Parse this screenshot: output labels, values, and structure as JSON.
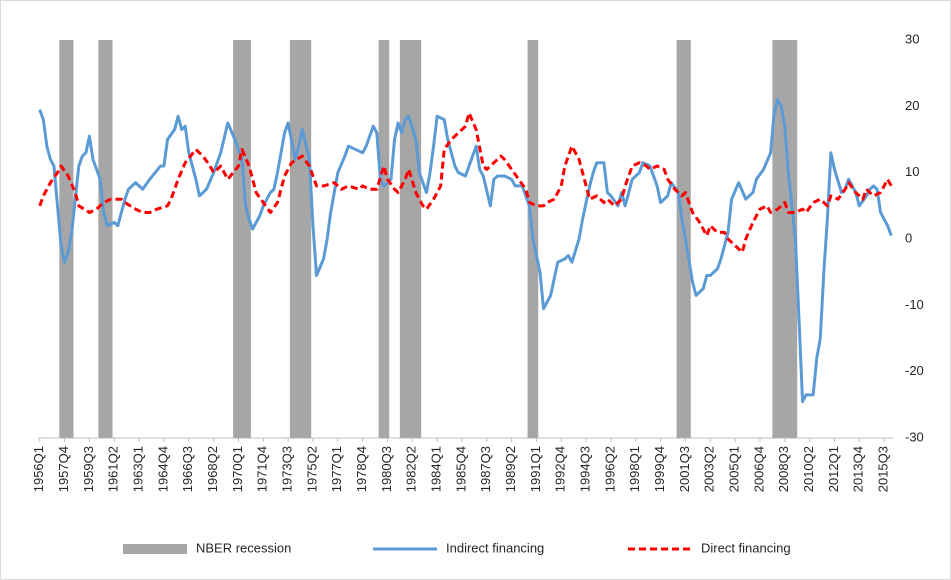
{
  "chart_data": {
    "type": "line",
    "xlim": [
      "1956Q1",
      "2016Q1"
    ],
    "xticks": [
      "1956Q1",
      "1957Q4",
      "1959Q3",
      "1961Q2",
      "1963Q1",
      "1964Q4",
      "1966Q3",
      "1968Q2",
      "1970Q1",
      "1971Q4",
      "1973Q3",
      "1975Q2",
      "1977Q1",
      "1978Q4",
      "1980Q3",
      "1982Q2",
      "1984Q1",
      "1985Q4",
      "1987Q3",
      "1989Q2",
      "1991Q1",
      "1992Q4",
      "1994Q3",
      "1996Q2",
      "1998Q1",
      "1999Q4",
      "2001Q3",
      "2003Q2",
      "2005Q1",
      "2006Q4",
      "2008Q3",
      "2010Q2",
      "2012Q1",
      "2013Q4",
      "2015Q3"
    ],
    "ylim": [
      -30,
      30
    ],
    "yticks": [
      -30,
      -20,
      -10,
      0,
      10,
      20,
      30
    ],
    "y_axis_side": "right",
    "grid": false,
    "legend": "bottom",
    "recessions": {
      "name": "NBER recession",
      "color": "#a6a6a6",
      "periods": [
        [
          "1957Q3",
          "1958Q2"
        ],
        [
          "1960Q2",
          "1961Q1"
        ],
        [
          "1969Q4",
          "1970Q4"
        ],
        [
          "1973Q4",
          "1975Q1"
        ],
        [
          "1980Q1",
          "1980Q3"
        ],
        [
          "1981Q3",
          "1982Q4"
        ],
        [
          "1990Q3",
          "1991Q1"
        ],
        [
          "2001Q1",
          "2001Q4"
        ],
        [
          "2007Q4",
          "2009Q2"
        ]
      ]
    },
    "series": [
      {
        "name": "Indirect financing",
        "color": "#5b9bd5",
        "dash": false,
        "x": [
          "1956Q1",
          "1956Q2",
          "1956Q3",
          "1956Q4",
          "1957Q1",
          "1957Q2",
          "1957Q3",
          "1957Q4",
          "1958Q1",
          "1958Q2",
          "1958Q3",
          "1958Q4",
          "1959Q1",
          "1959Q2",
          "1959Q3",
          "1959Q4",
          "1960Q2",
          "1960Q3",
          "1960Q4",
          "1961Q2",
          "1961Q3",
          "1962Q1",
          "1962Q2",
          "1962Q4",
          "1963Q2",
          "1963Q4",
          "1964Q3",
          "1964Q4",
          "1965Q1",
          "1965Q3",
          "1965Q4",
          "1966Q1",
          "1966Q2",
          "1966Q3",
          "1967Q1",
          "1967Q2",
          "1967Q4",
          "1968Q2",
          "1968Q4",
          "1969Q2",
          "1969Q4",
          "1970Q2",
          "1970Q3",
          "1970Q4",
          "1971Q1",
          "1971Q3",
          "1971Q4",
          "1972Q2",
          "1972Q3",
          "1972Q4",
          "1973Q2",
          "1973Q3",
          "1974Q1",
          "1974Q2",
          "1974Q3",
          "1975Q1",
          "1975Q2",
          "1975Q3",
          "1976Q1",
          "1976Q2",
          "1976Q3",
          "1977Q1",
          "1977Q3",
          "1977Q4",
          "1978Q2",
          "1978Q4",
          "1979Q1",
          "1979Q3",
          "1979Q4",
          "1980Q1",
          "1980Q2",
          "1980Q4",
          "1981Q1",
          "1981Q2",
          "1981Q3",
          "1981Q4",
          "1982Q1",
          "1982Q3",
          "1982Q4",
          "1983Q2",
          "1983Q3",
          "1983Q4",
          "1984Q1",
          "1984Q3",
          "1984Q4",
          "1985Q2",
          "1985Q3",
          "1986Q1",
          "1986Q2",
          "1986Q4",
          "1987Q1",
          "1987Q2",
          "1987Q4",
          "1988Q1",
          "1988Q2",
          "1988Q4",
          "1989Q2",
          "1989Q3",
          "1990Q1",
          "1990Q3",
          "1990Q4",
          "1991Q2",
          "1991Q3",
          "1992Q1",
          "1992Q2",
          "1992Q3",
          "1993Q1",
          "1993Q2",
          "1993Q3",
          "1994Q1",
          "1994Q2",
          "1994Q4",
          "1995Q1",
          "1995Q2",
          "1995Q4",
          "1996Q1",
          "1996Q2",
          "1996Q4",
          "1997Q1",
          "1997Q2",
          "1997Q3",
          "1997Q4",
          "1998Q2",
          "1998Q3",
          "1999Q1",
          "1999Q3",
          "1999Q4",
          "2000Q2",
          "2000Q3",
          "2001Q1",
          "2001Q2",
          "2001Q3",
          "2002Q1",
          "2002Q2",
          "2002Q4",
          "2003Q1",
          "2003Q2",
          "2003Q4",
          "2004Q1",
          "2004Q3",
          "2004Q4",
          "2005Q2",
          "2005Q4",
          "2006Q2",
          "2006Q3",
          "2007Q1",
          "2007Q3",
          "2007Q4",
          "2008Q1",
          "2008Q2",
          "2008Q3",
          "2008Q4",
          "2009Q2",
          "2009Q3",
          "2009Q4",
          "2010Q1",
          "2010Q3",
          "2010Q4",
          "2011Q1",
          "2011Q2",
          "2011Q3",
          "2011Q4",
          "2012Q1",
          "2012Q3",
          "2012Q4",
          "2013Q1",
          "2013Q3",
          "2013Q4",
          "2014Q2",
          "2014Q3",
          "2014Q4",
          "2015Q1",
          "2015Q2",
          "2015Q4",
          "2016Q1"
        ],
        "values": [
          19.5,
          18,
          14,
          12,
          11,
          5,
          -1,
          -3.5,
          -2,
          1,
          6,
          11,
          12.5,
          13,
          15.5,
          12,
          9,
          4,
          2,
          2.5,
          2,
          6,
          7.5,
          8.5,
          7.5,
          9,
          11,
          11,
          15,
          16.5,
          18.5,
          16.5,
          17,
          13,
          9,
          6.5,
          7.5,
          10,
          13,
          17.5,
          15,
          12,
          5,
          3,
          1.5,
          3.5,
          5,
          7,
          7.5,
          10,
          16,
          17.5,
          12,
          14,
          16.5,
          12,
          2,
          -5.5,
          -3,
          0,
          4,
          10,
          12.5,
          14,
          13.5,
          13,
          14,
          17,
          16,
          9,
          8,
          9,
          15,
          17.5,
          16,
          18,
          18.5,
          15,
          10,
          7,
          10,
          14,
          18.5,
          18,
          15,
          11,
          10,
          9.5,
          11,
          14,
          10.5,
          9.5,
          5,
          9,
          9.5,
          9.5,
          9,
          8,
          8,
          5,
          0,
          -5,
          -10.5,
          -8.5,
          -6,
          -3.5,
          -3,
          -2.5,
          -3.5,
          0,
          3,
          8,
          10,
          11.5,
          11.5,
          7,
          6.5,
          5,
          7,
          5,
          7,
          9,
          10,
          11.5,
          11,
          8,
          5.5,
          6.5,
          8.5,
          7,
          3,
          0,
          -6.5,
          -8.5,
          -7.5,
          -5.5,
          -5.5,
          -4.5,
          -3,
          1,
          6,
          8.5,
          6,
          7,
          9,
          10.5,
          13,
          19,
          21,
          20,
          17,
          10,
          0,
          -12,
          -24.5,
          -23.5,
          -23.5,
          -18,
          -15,
          -5,
          3,
          13,
          10.5,
          7,
          7.5,
          9,
          7,
          5,
          6.5,
          7.5,
          8,
          7.5,
          4,
          2,
          0.5
        ]
      },
      {
        "name": "Direct financing",
        "color": "#ff0000",
        "dash": true,
        "x": [
          "1956Q1",
          "1956Q2",
          "1956Q4",
          "1957Q2",
          "1957Q3",
          "1958Q1",
          "1958Q3",
          "1958Q4",
          "1959Q3",
          "1960Q1",
          "1960Q3",
          "1961Q1",
          "1961Q4",
          "1962Q1",
          "1962Q4",
          "1963Q2",
          "1963Q4",
          "1964Q2",
          "1965Q1",
          "1965Q2",
          "1965Q4",
          "1966Q2",
          "1967Q1",
          "1967Q3",
          "1968Q1",
          "1968Q2",
          "1968Q4",
          "1969Q2",
          "1970Q1",
          "1970Q2",
          "1970Q4",
          "1971Q2",
          "1971Q4",
          "1972Q2",
          "1972Q4",
          "1973Q2",
          "1973Q4",
          "1974Q3",
          "1975Q1",
          "1975Q3",
          "1976Q1",
          "1976Q4",
          "1977Q2",
          "1977Q4",
          "1978Q3",
          "1978Q4",
          "1979Q2",
          "1979Q4",
          "1980Q2",
          "1980Q3",
          "1981Q1",
          "1981Q2",
          "1981Q4",
          "1982Q1",
          "1982Q3",
          "1983Q1",
          "1983Q2",
          "1983Q4",
          "1984Q2",
          "1984Q3",
          "1985Q1",
          "1985Q3",
          "1986Q1",
          "1986Q2",
          "1986Q4",
          "1987Q2",
          "1987Q3",
          "1988Q1",
          "1988Q3",
          "1988Q4",
          "1989Q2",
          "1989Q4",
          "1990Q2",
          "1990Q3",
          "1991Q1",
          "1991Q3",
          "1991Q4",
          "1992Q2",
          "1992Q4",
          "1993Q1",
          "1993Q3",
          "1994Q1",
          "1994Q3",
          "1994Q4",
          "1995Q2",
          "1995Q4",
          "1996Q1",
          "1996Q3",
          "1997Q1",
          "1997Q2",
          "1997Q4",
          "1998Q2",
          "1998Q4",
          "1999Q1",
          "1999Q3",
          "2000Q1",
          "2000Q2",
          "2000Q4",
          "2001Q2",
          "2001Q3",
          "2002Q1",
          "2002Q3",
          "2003Q1",
          "2003Q2",
          "2003Q4",
          "2004Q2",
          "2004Q3",
          "2005Q1",
          "2005Q3",
          "2005Q4",
          "2006Q2",
          "2006Q4",
          "2007Q2",
          "2007Q3",
          "2008Q1",
          "2008Q3",
          "2008Q4",
          "2009Q2",
          "2009Q4",
          "2010Q1",
          "2010Q3",
          "2011Q1",
          "2011Q3",
          "2011Q4",
          "2012Q2",
          "2012Q4",
          "2013Q1",
          "2013Q3",
          "2014Q1",
          "2014Q2",
          "2014Q4",
          "2015Q2",
          "2015Q4",
          "2016Q1"
        ],
        "values": [
          5,
          6.5,
          8.5,
          10,
          11,
          9.5,
          7,
          5,
          4,
          4.5,
          5.5,
          6,
          6,
          5.5,
          4.5,
          4,
          4,
          4.5,
          5,
          6,
          9,
          11.5,
          13.5,
          12.5,
          11,
          10,
          11,
          9,
          11,
          13.5,
          11,
          7,
          5.5,
          4,
          5.5,
          9.5,
          11.5,
          12.5,
          11,
          8,
          8,
          8.5,
          7.5,
          8,
          7.5,
          8,
          7.5,
          7.5,
          11,
          9,
          7.5,
          7,
          9,
          10.5,
          7,
          5,
          4.5,
          6,
          8,
          13.5,
          15,
          16,
          17,
          19,
          16.5,
          11,
          10.5,
          11.5,
          12.5,
          12,
          10.5,
          9,
          7.5,
          5.5,
          5,
          5,
          5.5,
          6,
          8,
          11,
          14,
          12,
          8,
          6,
          6.5,
          5.5,
          6,
          5,
          6,
          8,
          11,
          11.5,
          11,
          10.5,
          11,
          10.5,
          9,
          7.5,
          6.5,
          7,
          4,
          2.5,
          0.5,
          2,
          1,
          1,
          0,
          -1,
          -2,
          0,
          2.5,
          4.5,
          5,
          4,
          4.5,
          5.5,
          4,
          4,
          4.5,
          4,
          5.5,
          6,
          5,
          6.5,
          6,
          7.5,
          8.5,
          7,
          6,
          7.5,
          6.5,
          7,
          9,
          8
        ]
      }
    ]
  }
}
